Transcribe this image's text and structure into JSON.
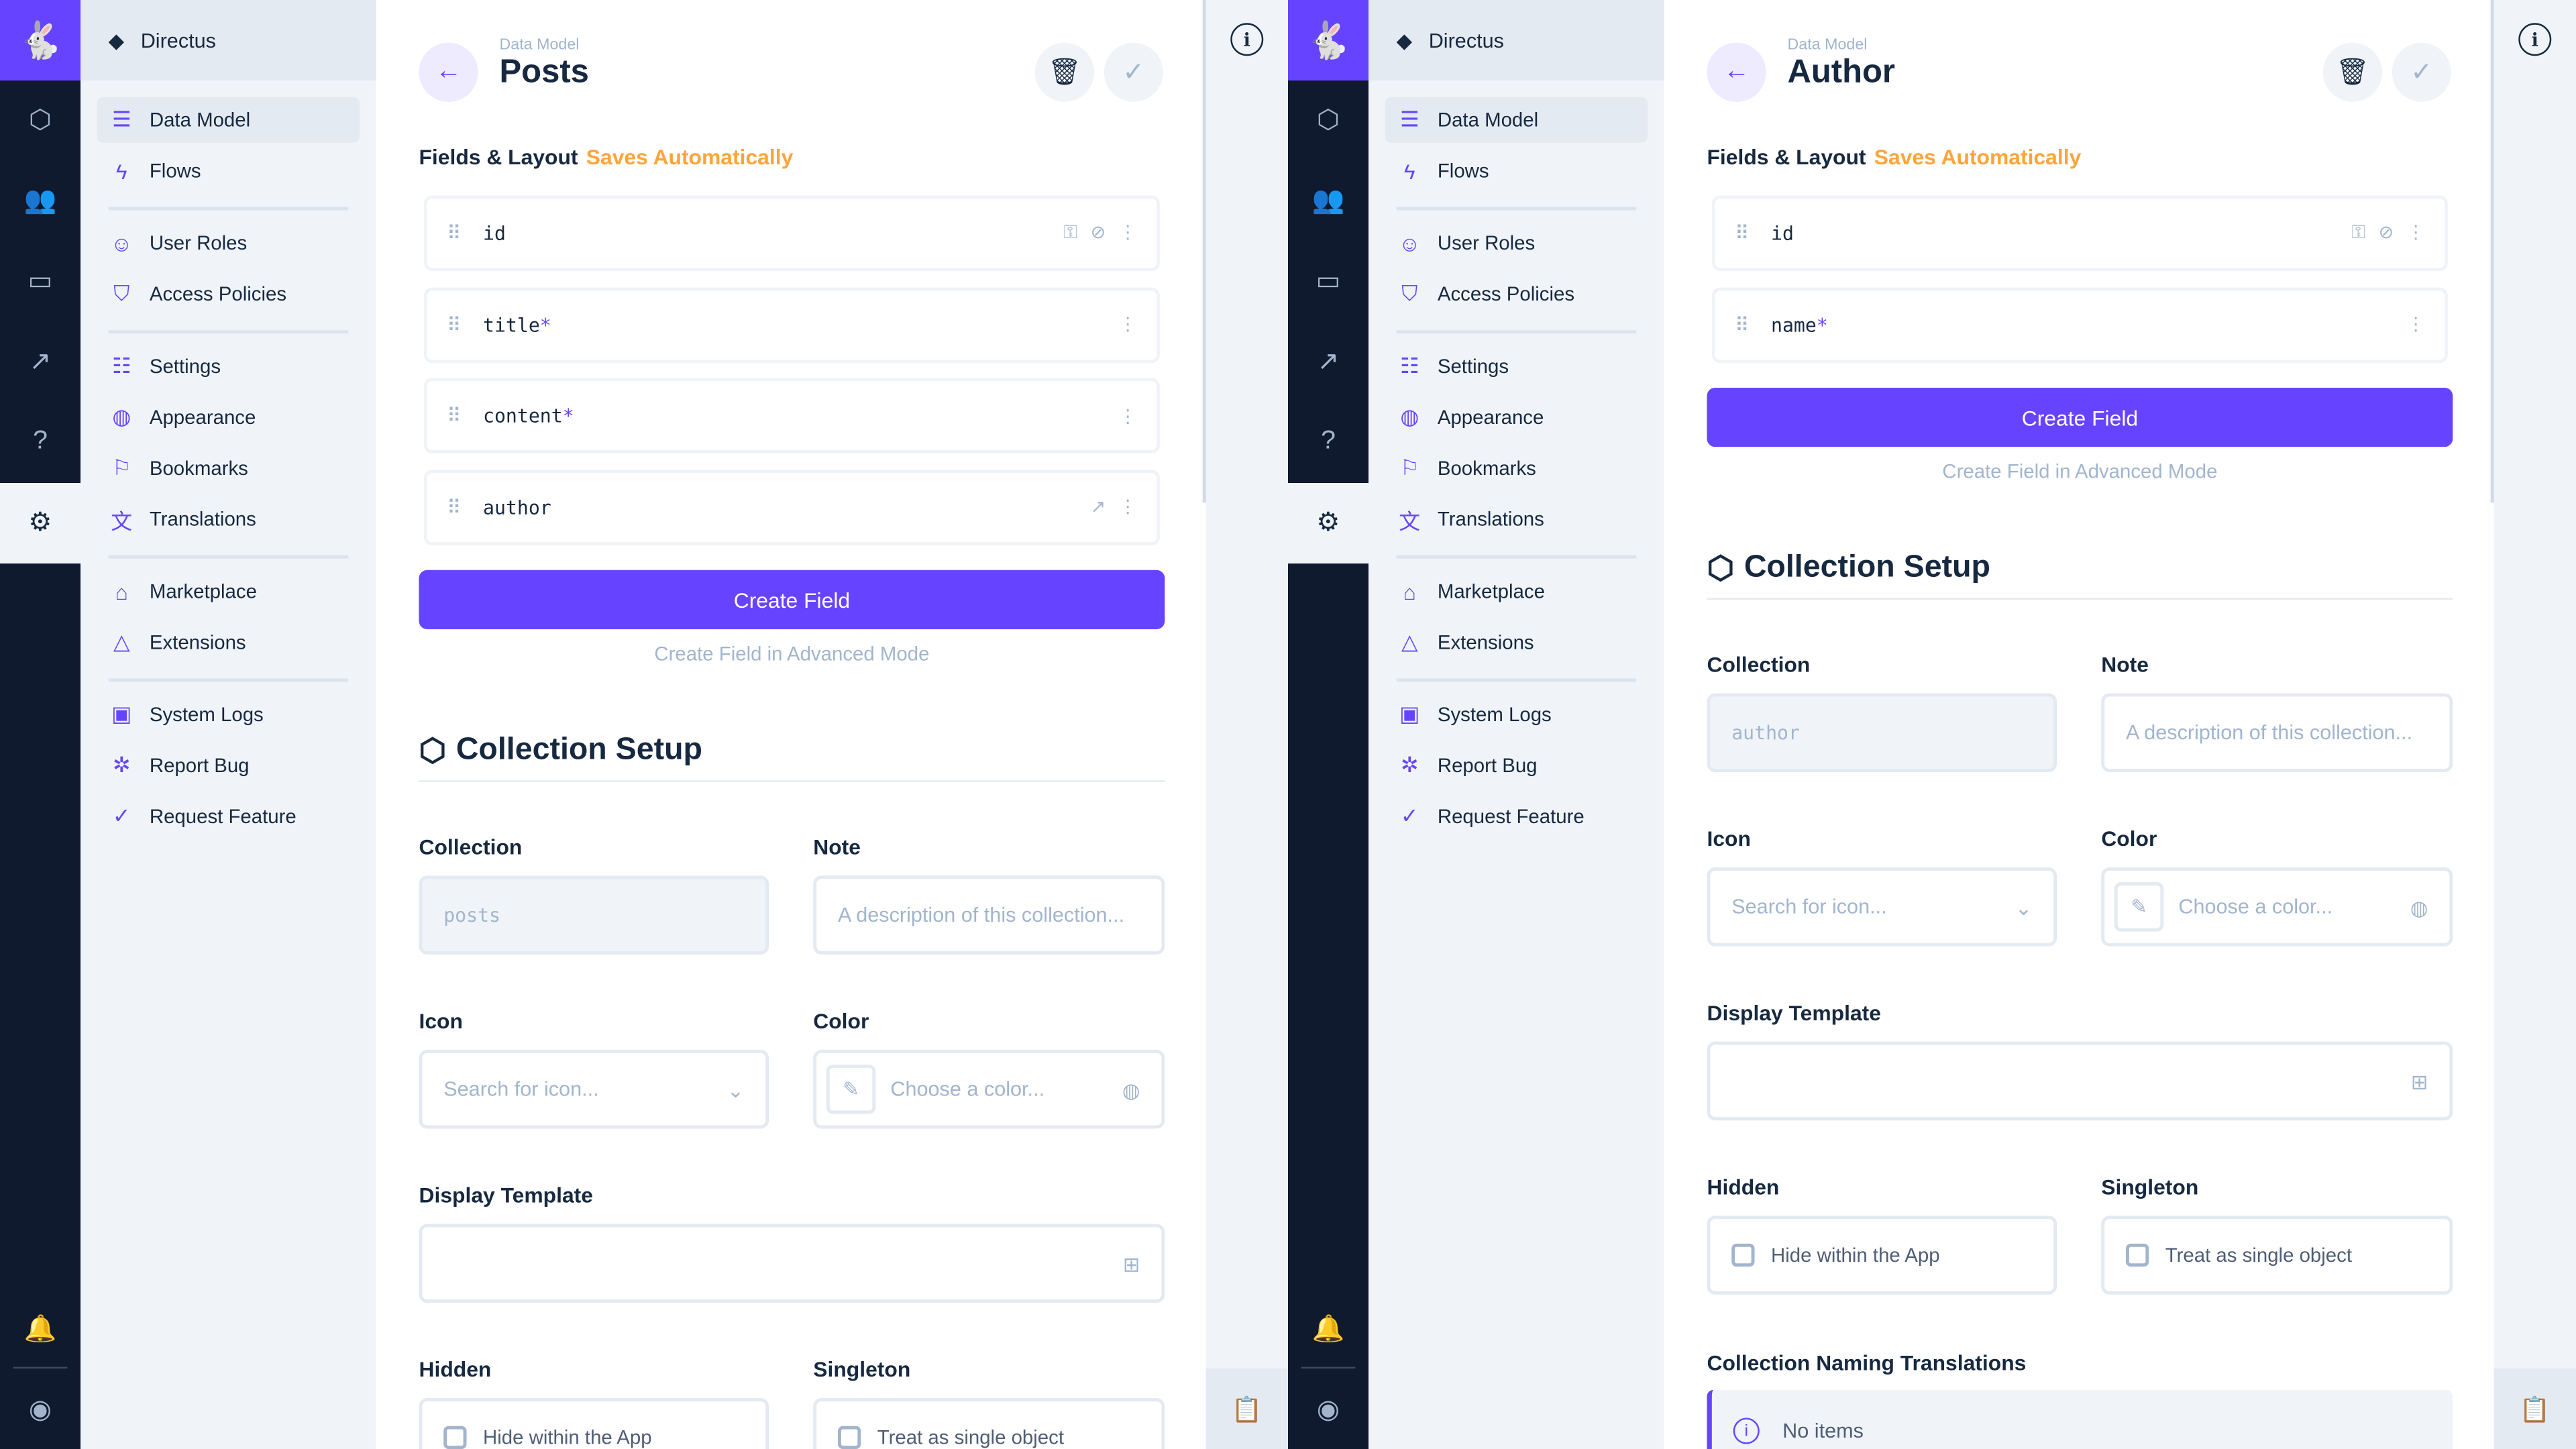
{
  "app_name": "Directus",
  "colors": {
    "accent": "#6644ff",
    "saves_auto": "#ffa439",
    "rail": "#101a2e"
  },
  "rail": [
    {
      "icon": "content-cube-icon"
    },
    {
      "icon": "users-icon"
    },
    {
      "icon": "folder-icon"
    },
    {
      "icon": "insights-icon"
    },
    {
      "icon": "help-icon"
    },
    {
      "icon": "settings-gear-icon",
      "active": true
    }
  ],
  "sidebar": {
    "items": [
      {
        "label": "Data Model",
        "icon": "database-icon",
        "active": true
      },
      {
        "label": "Flows",
        "icon": "bolt-icon"
      },
      {
        "label": "User Roles",
        "icon": "user-roles-icon"
      },
      {
        "label": "Access Policies",
        "icon": "policy-icon"
      },
      {
        "label": "Settings",
        "icon": "sliders-icon"
      },
      {
        "label": "Appearance",
        "icon": "palette-icon"
      },
      {
        "label": "Bookmarks",
        "icon": "bookmark-icon"
      },
      {
        "label": "Translations",
        "icon": "translate-icon"
      },
      {
        "label": "Marketplace",
        "icon": "storefront-icon"
      },
      {
        "label": "Extensions",
        "icon": "shapes-icon"
      },
      {
        "label": "System Logs",
        "icon": "terminal-icon"
      },
      {
        "label": "Report Bug",
        "icon": "bug-icon"
      },
      {
        "label": "Request Feature",
        "icon": "verified-icon"
      }
    ]
  },
  "labels": {
    "breadcrumb": "Data Model",
    "fields_layout": "Fields & Layout",
    "saves_auto": "Saves Automatically",
    "create_field": "Create Field",
    "advanced": "Create Field in Advanced Mode",
    "collection_setup": "Collection Setup",
    "collection": "Collection",
    "note": "Note",
    "note_placeholder": "A description of this collection...",
    "icon": "Icon",
    "icon_placeholder": "Search for icon...",
    "color": "Color",
    "color_placeholder": "Choose a color...",
    "display_template": "Display Template",
    "hidden": "Hidden",
    "hidden_checkbox": "Hide within the App",
    "singleton": "Singleton",
    "singleton_checkbox": "Treat as single object",
    "naming_translations": "Collection Naming Translations",
    "no_items": "No items"
  },
  "panels": [
    {
      "title": "Posts",
      "collection": "posts",
      "fields": [
        {
          "name": "id",
          "required": false,
          "actions": [
            "key-icon",
            "hidden-eye-icon",
            "more-vert-icon"
          ]
        },
        {
          "name": "title",
          "required": true,
          "actions": [
            "more-vert-icon"
          ]
        },
        {
          "name": "content",
          "required": true,
          "actions": [
            "more-vert-icon"
          ]
        },
        {
          "name": "author",
          "required": false,
          "actions": [
            "open-in-new-icon",
            "more-vert-icon"
          ]
        }
      ]
    },
    {
      "title": "Author",
      "collection": "author",
      "fields": [
        {
          "name": "id",
          "required": false,
          "actions": [
            "key-icon",
            "hidden-eye-icon",
            "more-vert-icon"
          ]
        },
        {
          "name": "name",
          "required": true,
          "actions": [
            "more-vert-icon"
          ]
        }
      ],
      "show_translations": true
    }
  ]
}
